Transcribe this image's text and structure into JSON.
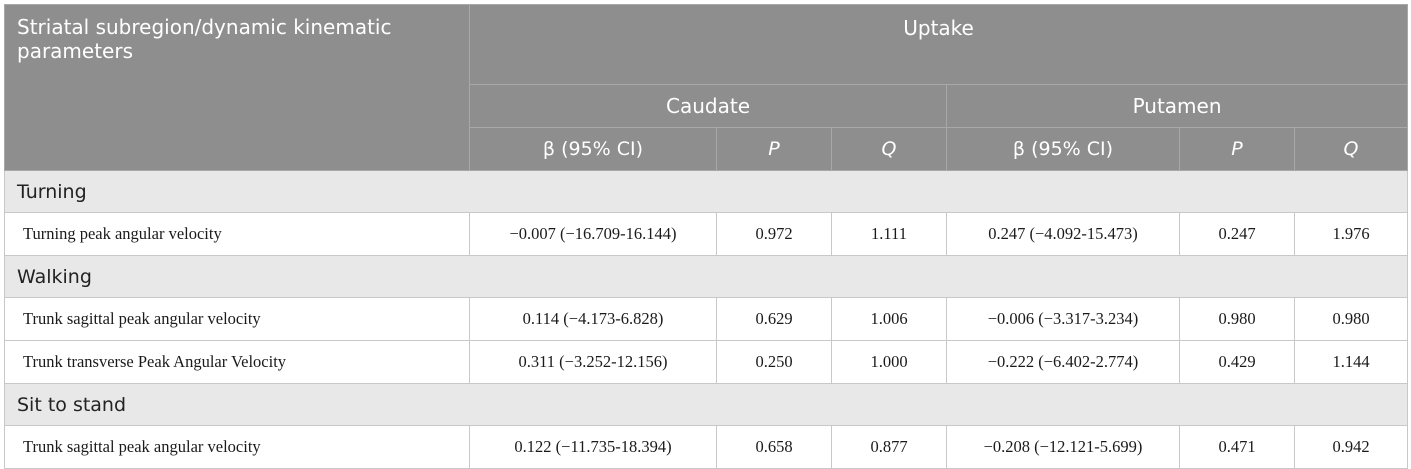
{
  "header": {
    "row_label": "Striatal subregion/dynamic kinematic parameters",
    "uptake": "Uptake",
    "caudate": "Caudate",
    "putamen": "Putamen",
    "beta_ci": "β (95% CI)",
    "p": "P",
    "q": "Q"
  },
  "groups": [
    {
      "name": "Turning",
      "rows": [
        {
          "label": "Turning peak angular velocity",
          "c_beta": "−0.007 (−16.709-16.144)",
          "c_p": "0.972",
          "c_q": "1.111",
          "p_beta": "0.247 (−4.092-15.473)",
          "p_p": "0.247",
          "p_q": "1.976"
        }
      ]
    },
    {
      "name": "Walking",
      "rows": [
        {
          "label": "Trunk sagittal peak angular velocity",
          "c_beta": "0.114 (−4.173-6.828)",
          "c_p": "0.629",
          "c_q": "1.006",
          "p_beta": "−0.006 (−3.317-3.234)",
          "p_p": "0.980",
          "p_q": "0.980"
        },
        {
          "label": "Trunk transverse Peak Angular Velocity",
          "c_beta": "0.311 (−3.252-12.156)",
          "c_p": "0.250",
          "c_q": "1.000",
          "p_beta": "−0.222 (−6.402-2.774)",
          "p_p": "0.429",
          "p_q": "1.144"
        }
      ]
    },
    {
      "name": "Sit to stand",
      "rows": [
        {
          "label": "Trunk sagittal peak angular velocity",
          "c_beta": "0.122 (−11.735-18.394)",
          "c_p": "0.658",
          "c_q": "0.877",
          "p_beta": "−0.208 (−12.121-5.699)",
          "p_p": "0.471",
          "p_q": "0.942"
        }
      ]
    }
  ]
}
